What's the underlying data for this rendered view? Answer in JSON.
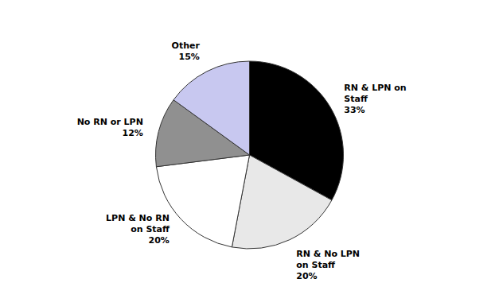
{
  "chart_data": {
    "type": "pie",
    "categories": [
      "RN & LPN on\nStaff",
      "RN & No LPN\non Staff",
      "LPN & No RN\non Staff",
      "No RN or LPN",
      "Other"
    ],
    "values": [
      33,
      20,
      20,
      12,
      15
    ],
    "value_labels": [
      "33%",
      "20%",
      "20%",
      "12%",
      "15%"
    ],
    "colors": [
      "#000000",
      "#e8e8e8",
      "#ffffff",
      "#909090",
      "#c8c8f0"
    ],
    "data_labels": true
  }
}
